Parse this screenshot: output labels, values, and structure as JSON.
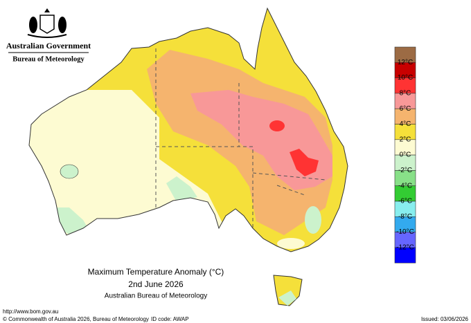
{
  "header": {
    "government": "Australian Government",
    "bureau": "Bureau of Meteorology"
  },
  "legend": {
    "colors": [
      "#9c6b44",
      "#c80000",
      "#ff3333",
      "#f89898",
      "#f5b46e",
      "#f5e03a",
      "#fdfbd2",
      "#ccf2cc",
      "#88e088",
      "#33cc33",
      "#88eeee",
      "#33aaee",
      "#6666ff",
      "#0000ff"
    ],
    "labels": [
      "12°C",
      "10°C",
      "8°C",
      "6°C",
      "4°C",
      "2°C",
      "0°C",
      "-2°C",
      "-4°C",
      "-6°C",
      "-8°C",
      "-10°C",
      "-12°C"
    ]
  },
  "title": {
    "line1": "Maximum Temperature Anomaly (°C)",
    "line2": "2nd June 2026",
    "line3": "Australian Bureau of Meteorology"
  },
  "footer": {
    "url": "http://www.bom.gov.au",
    "copyright": "© Commonwealth of Australia 2026, Bureau of Meteorology",
    "id_code": "ID code: AWAP",
    "issued": "Issued: 03/06/2026"
  }
}
